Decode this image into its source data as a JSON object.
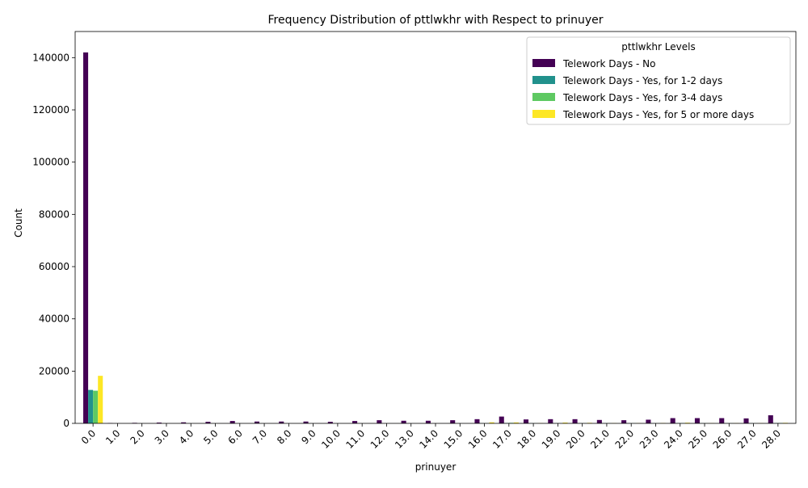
{
  "chart_data": {
    "type": "bar",
    "title": "Frequency Distribution of pttlwkhr with Respect to prinuyer",
    "xlabel": "prinuyer",
    "ylabel": "Count",
    "ylim": [
      0,
      150000
    ],
    "yticks": [
      0,
      20000,
      40000,
      60000,
      80000,
      100000,
      120000,
      140000
    ],
    "ytick_labels": [
      "0",
      "20000",
      "40000",
      "60000",
      "80000",
      "100000",
      "120000",
      "140000"
    ],
    "categories": [
      "0.0",
      "1.0",
      "2.0",
      "3.0",
      "4.0",
      "5.0",
      "6.0",
      "7.0",
      "8.0",
      "9.0",
      "10.0",
      "11.0",
      "12.0",
      "13.0",
      "14.0",
      "15.0",
      "16.0",
      "17.0",
      "18.0",
      "19.0",
      "20.0",
      "21.0",
      "22.0",
      "23.0",
      "24.0",
      "25.0",
      "26.0",
      "27.0",
      "28.0"
    ],
    "legend": {
      "title": "pttlwkhr Levels",
      "position": "top-right"
    },
    "grid": false,
    "series": [
      {
        "name": "Telework Days - No",
        "color": "#440154",
        "values": [
          142000,
          100,
          200,
          300,
          400,
          600,
          900,
          700,
          700,
          700,
          600,
          900,
          1200,
          1000,
          1000,
          1200,
          1600,
          2600,
          1500,
          1600,
          1600,
          1300,
          1200,
          1400,
          2000,
          2000,
          2000,
          1900,
          3100
        ]
      },
      {
        "name": "Telework Days - Yes, for 1-2 days",
        "color": "#21918c",
        "values": [
          12800,
          0,
          0,
          0,
          0,
          0,
          0,
          0,
          0,
          0,
          0,
          0,
          0,
          0,
          0,
          0,
          50,
          150,
          50,
          50,
          50,
          50,
          50,
          50,
          100,
          50,
          50,
          50,
          100
        ]
      },
      {
        "name": "Telework Days - Yes, for 3-4 days",
        "color": "#5ec962",
        "values": [
          12500,
          0,
          0,
          0,
          0,
          0,
          0,
          0,
          0,
          0,
          0,
          0,
          0,
          0,
          0,
          0,
          50,
          200,
          50,
          50,
          50,
          50,
          50,
          50,
          100,
          50,
          50,
          50,
          150
        ]
      },
      {
        "name": "Telework Days - Yes, for 5 or more days",
        "color": "#fde725",
        "values": [
          18200,
          0,
          0,
          0,
          0,
          0,
          0,
          0,
          0,
          0,
          0,
          0,
          0,
          0,
          0,
          0,
          400,
          350,
          100,
          300,
          200,
          100,
          100,
          150,
          250,
          100,
          100,
          100,
          200
        ]
      }
    ]
  }
}
